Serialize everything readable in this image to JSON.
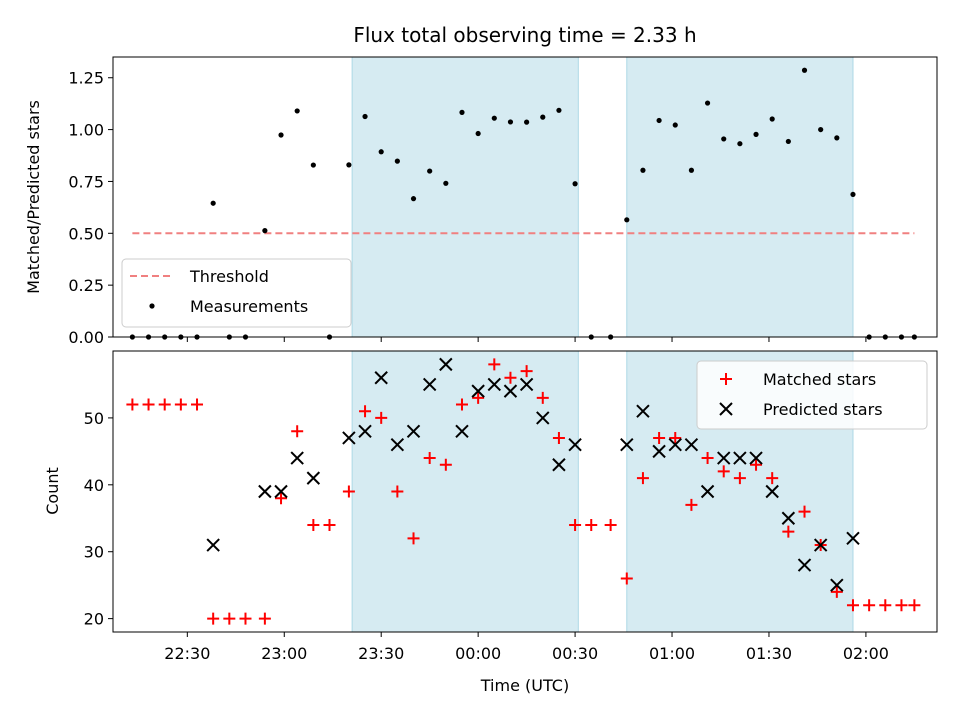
{
  "figure": {
    "title": "Flux total observing time = 2.33 h",
    "xlabel": "Time (UTC)",
    "xticks": [
      {
        "t": 22.5,
        "label": "22:30"
      },
      {
        "t": 23.0,
        "label": "23:00"
      },
      {
        "t": 23.5,
        "label": "23:30"
      },
      {
        "t": 24.0,
        "label": "00:00"
      },
      {
        "t": 24.5,
        "label": "00:30"
      },
      {
        "t": 25.0,
        "label": "01:00"
      },
      {
        "t": 25.5,
        "label": "01:30"
      },
      {
        "t": 26.0,
        "label": "02:00"
      }
    ]
  },
  "chart_data": [
    {
      "type": "scatter",
      "title": "Flux total observing time = 2.33 h",
      "xlabel": "",
      "ylabel": "Matched/Predicted stars",
      "xlim": [
        "22:07",
        "02:22"
      ],
      "ylim": [
        0,
        1.35
      ],
      "yticks": [
        0,
        0.25,
        0.5,
        0.75,
        1.0,
        1.25
      ],
      "ytick_labels": [
        "0.00",
        "0.25",
        "0.50",
        "0.75",
        "1.00",
        "1.25"
      ],
      "shaded_intervals": [
        [
          "23:21",
          "00:31"
        ],
        [
          "00:46",
          "01:56"
        ]
      ],
      "legend_position": "lower left",
      "threshold": {
        "name": "Threshold",
        "value": 0.5,
        "x_start": "22:13",
        "x_end": "02:15",
        "color": "#f08080"
      },
      "series": [
        {
          "name": "Measurements",
          "color": "#000000",
          "points": [
            [
              "22:13",
              0
            ],
            [
              "22:18",
              0
            ],
            [
              "22:23",
              0
            ],
            [
              "22:28",
              0
            ],
            [
              "22:33",
              0
            ],
            [
              "22:38",
              0.645
            ],
            [
              "22:43",
              0
            ],
            [
              "22:48",
              0
            ],
            [
              "22:54",
              0.513
            ],
            [
              "22:59",
              0.974
            ],
            [
              "23:04",
              1.09
            ],
            [
              "23:09",
              0.829
            ],
            [
              "23:14",
              0
            ],
            [
              "23:20",
              0.83
            ],
            [
              "23:25",
              1.063
            ],
            [
              "23:30",
              0.893
            ],
            [
              "23:35",
              0.848
            ],
            [
              "23:40",
              0.667
            ],
            [
              "23:45",
              0.8
            ],
            [
              "23:50",
              0.741
            ],
            [
              "23:55",
              1.083
            ],
            [
              "00:00",
              0.981
            ],
            [
              "00:05",
              1.055
            ],
            [
              "00:10",
              1.037
            ],
            [
              "00:15",
              1.036
            ],
            [
              "00:20",
              1.06
            ],
            [
              "00:25",
              1.093
            ],
            [
              "00:30",
              0.739
            ],
            [
              "00:35",
              0
            ],
            [
              "00:41",
              0
            ],
            [
              "00:46",
              0.565
            ],
            [
              "00:51",
              0.804
            ],
            [
              "00:56",
              1.044
            ],
            [
              "01:01",
              1.022
            ],
            [
              "01:06",
              0.804
            ],
            [
              "01:11",
              1.128
            ],
            [
              "01:16",
              0.955
            ],
            [
              "01:21",
              0.932
            ],
            [
              "01:26",
              0.977
            ],
            [
              "01:31",
              1.051
            ],
            [
              "01:36",
              0.943
            ],
            [
              "01:41",
              1.286
            ],
            [
              "01:46",
              1.0
            ],
            [
              "01:51",
              0.96
            ],
            [
              "01:56",
              0.6875
            ],
            [
              "02:01",
              0
            ],
            [
              "02:06",
              0
            ],
            [
              "02:11",
              0
            ],
            [
              "02:15",
              0
            ]
          ]
        }
      ]
    },
    {
      "type": "scatter",
      "title": "",
      "xlabel": "Time (UTC)",
      "ylabel": "Count",
      "xlim": [
        "22:07",
        "02:22"
      ],
      "ylim": [
        18,
        60
      ],
      "yticks": [
        20,
        30,
        40,
        50
      ],
      "ytick_labels": [
        "20",
        "30",
        "40",
        "50"
      ],
      "shaded_intervals": [
        [
          "23:21",
          "00:31"
        ],
        [
          "00:46",
          "01:56"
        ]
      ],
      "legend_position": "upper right",
      "series": [
        {
          "name": "Matched stars",
          "marker": "plus",
          "color": "#ff0000",
          "points": [
            [
              "22:13",
              52
            ],
            [
              "22:18",
              52
            ],
            [
              "22:23",
              52
            ],
            [
              "22:28",
              52
            ],
            [
              "22:33",
              52
            ],
            [
              "22:38",
              20
            ],
            [
              "22:43",
              20
            ],
            [
              "22:48",
              20
            ],
            [
              "22:54",
              20
            ],
            [
              "22:59",
              38
            ],
            [
              "23:04",
              48
            ],
            [
              "23:09",
              34
            ],
            [
              "23:14",
              34
            ],
            [
              "23:20",
              39
            ],
            [
              "23:25",
              51
            ],
            [
              "23:30",
              50
            ],
            [
              "23:35",
              39
            ],
            [
              "23:40",
              32
            ],
            [
              "23:45",
              44
            ],
            [
              "23:50",
              43
            ],
            [
              "23:55",
              52
            ],
            [
              "00:00",
              53
            ],
            [
              "00:05",
              58
            ],
            [
              "00:10",
              56
            ],
            [
              "00:15",
              57
            ],
            [
              "00:20",
              53
            ],
            [
              "00:25",
              47
            ],
            [
              "00:30",
              34
            ],
            [
              "00:35",
              34
            ],
            [
              "00:41",
              34
            ],
            [
              "00:46",
              26
            ],
            [
              "00:51",
              41
            ],
            [
              "00:56",
              47
            ],
            [
              "01:01",
              47
            ],
            [
              "01:06",
              37
            ],
            [
              "01:11",
              44
            ],
            [
              "01:16",
              42
            ],
            [
              "01:21",
              41
            ],
            [
              "01:26",
              43
            ],
            [
              "01:31",
              41
            ],
            [
              "01:36",
              33
            ],
            [
              "01:41",
              36
            ],
            [
              "01:46",
              31
            ],
            [
              "01:51",
              24
            ],
            [
              "01:56",
              22
            ],
            [
              "02:01",
              22
            ],
            [
              "02:06",
              22
            ],
            [
              "02:11",
              22
            ],
            [
              "02:15",
              22
            ]
          ]
        },
        {
          "name": "Predicted stars",
          "marker": "x",
          "color": "#000000",
          "points": [
            [
              "22:38",
              31
            ],
            [
              "22:54",
              39
            ],
            [
              "22:59",
              39
            ],
            [
              "23:04",
              44
            ],
            [
              "23:09",
              41
            ],
            [
              "23:20",
              47
            ],
            [
              "23:25",
              48
            ],
            [
              "23:30",
              56
            ],
            [
              "23:35",
              46
            ],
            [
              "23:40",
              48
            ],
            [
              "23:45",
              55
            ],
            [
              "23:50",
              58
            ],
            [
              "23:55",
              48
            ],
            [
              "00:00",
              54
            ],
            [
              "00:05",
              55
            ],
            [
              "00:10",
              54
            ],
            [
              "00:15",
              55
            ],
            [
              "00:20",
              50
            ],
            [
              "00:25",
              43
            ],
            [
              "00:30",
              46
            ],
            [
              "00:46",
              46
            ],
            [
              "00:51",
              51
            ],
            [
              "00:56",
              45
            ],
            [
              "01:01",
              46
            ],
            [
              "01:06",
              46
            ],
            [
              "01:11",
              39
            ],
            [
              "01:16",
              44
            ],
            [
              "01:21",
              44
            ],
            [
              "01:26",
              44
            ],
            [
              "01:31",
              39
            ],
            [
              "01:36",
              35
            ],
            [
              "01:41",
              28
            ],
            [
              "01:46",
              31
            ],
            [
              "01:51",
              25
            ],
            [
              "01:56",
              32
            ]
          ]
        }
      ]
    }
  ]
}
